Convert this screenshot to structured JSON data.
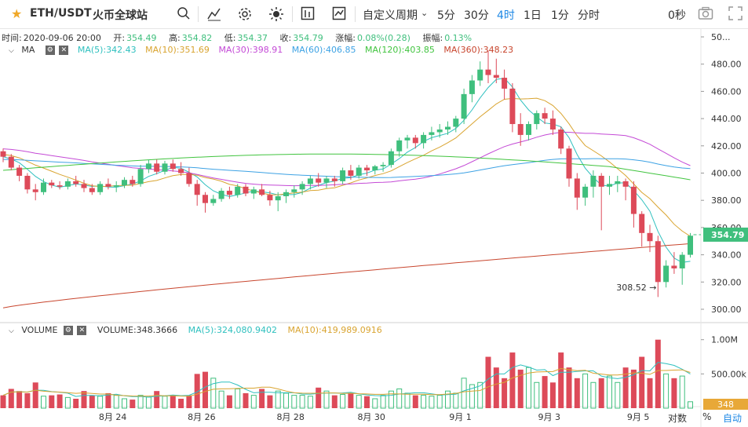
{
  "topbar": {
    "pair": "ETH/USDT",
    "exchange": "火币全球站",
    "custom_period": "自定义周期",
    "periods": [
      "5分",
      "30分",
      "4时",
      "1日",
      "1分",
      "分时"
    ],
    "active_period": "4时",
    "countdown": "0秒"
  },
  "info": {
    "time_label": "时间:",
    "time": "2020-09-06 20:00",
    "open_label": "开:",
    "open": "354.49",
    "high_label": "高:",
    "high": "354.82",
    "low_label": "低:",
    "low": "354.37",
    "close_label": "收:",
    "close": "354.79",
    "change_label": "涨幅:",
    "change": "0.08%(0.28)",
    "amp_label": "振幅:",
    "amp": "0.13%"
  },
  "ma_legend": {
    "name": "MA",
    "items": [
      {
        "label": "MA(5):342.43",
        "color": "#2fc0bf"
      },
      {
        "label": "MA(10):351.69",
        "color": "#d9a430"
      },
      {
        "label": "MA(30):398.91",
        "color": "#c44ad6"
      },
      {
        "label": "MA(60):406.85",
        "color": "#3da2e4"
      },
      {
        "label": "MA(120):403.85",
        "color": "#41c43f"
      },
      {
        "label": "MA(360):348.23",
        "color": "#c8462e"
      }
    ]
  },
  "volume_legend": {
    "name": "VOLUME",
    "volume": "VOLUME:348.3666",
    "ma5": "MA(5):324,080.9402",
    "ma10": "MA(10):419,989.0916"
  },
  "colors": {
    "up": "#3fbf7d",
    "down": "#dd4a59",
    "accent": "#1e88e5",
    "last_price_bg": "#3fbf7d"
  },
  "bottom": {
    "log_label": "对数",
    "pct_label": "%",
    "auto_label": "自动"
  },
  "chart_data": {
    "type": "candlestick",
    "title": "ETH/USDT 4H",
    "ylim": [
      290,
      500
    ],
    "y_ticks": [
      "300.00",
      "320.00",
      "340.00",
      "360.00",
      "380.00",
      "400.00",
      "420.00",
      "440.00",
      "460.00",
      "480.00",
      "50..."
    ],
    "x_ticks": [
      "8月 24",
      "8月 26",
      "8月 28",
      "8月 30",
      "9月 1",
      "9月 3",
      "9月 5"
    ],
    "last_price": "354.79",
    "low_marker": "308.52",
    "volume_ticks": [
      "1.00M",
      "500.00k"
    ],
    "volume_last": "348",
    "candles": [
      [
        416,
        418,
        408,
        412
      ],
      [
        412,
        414,
        402,
        404
      ],
      [
        404,
        406,
        394,
        398
      ],
      [
        398,
        400,
        385,
        388
      ],
      [
        388,
        392,
        380,
        386
      ],
      [
        386,
        396,
        384,
        393
      ],
      [
        393,
        395,
        389,
        391
      ],
      [
        391,
        394,
        388,
        390
      ],
      [
        390,
        396,
        388,
        394
      ],
      [
        394,
        398,
        390,
        392
      ],
      [
        392,
        395,
        386,
        389
      ],
      [
        389,
        392,
        384,
        386
      ],
      [
        386,
        394,
        384,
        392
      ],
      [
        392,
        396,
        388,
        390
      ],
      [
        390,
        394,
        386,
        391
      ],
      [
        391,
        397,
        389,
        395
      ],
      [
        395,
        398,
        390,
        392
      ],
      [
        392,
        406,
        390,
        403
      ],
      [
        403,
        410,
        400,
        407
      ],
      [
        407,
        410,
        399,
        401
      ],
      [
        401,
        409,
        399,
        407
      ],
      [
        407,
        410,
        401,
        403
      ],
      [
        403,
        408,
        398,
        400
      ],
      [
        400,
        404,
        390,
        392
      ],
      [
        392,
        395,
        376,
        384
      ],
      [
        384,
        386,
        371,
        378
      ],
      [
        378,
        384,
        376,
        381
      ],
      [
        381,
        389,
        379,
        387
      ],
      [
        387,
        390,
        381,
        384
      ],
      [
        384,
        392,
        382,
        390
      ],
      [
        390,
        392,
        383,
        385
      ],
      [
        385,
        390,
        381,
        388
      ],
      [
        388,
        392,
        383,
        384
      ],
      [
        384,
        387,
        376,
        380
      ],
      [
        380,
        386,
        372,
        383
      ],
      [
        383,
        388,
        378,
        386
      ],
      [
        386,
        391,
        382,
        388
      ],
      [
        388,
        394,
        384,
        392
      ],
      [
        392,
        398,
        388,
        396
      ],
      [
        396,
        400,
        390,
        393
      ],
      [
        393,
        398,
        389,
        396
      ],
      [
        396,
        398,
        390,
        394
      ],
      [
        394,
        404,
        392,
        402
      ],
      [
        402,
        406,
        395,
        398
      ],
      [
        398,
        406,
        396,
        404
      ],
      [
        404,
        406,
        398,
        402
      ],
      [
        402,
        406,
        399,
        405
      ],
      [
        405,
        408,
        401,
        406
      ],
      [
        406,
        418,
        404,
        416
      ],
      [
        416,
        426,
        412,
        424
      ],
      [
        424,
        428,
        418,
        426
      ],
      [
        426,
        428,
        418,
        422
      ],
      [
        422,
        430,
        418,
        428
      ],
      [
        428,
        434,
        424,
        430
      ],
      [
        430,
        436,
        426,
        432
      ],
      [
        432,
        438,
        428,
        434
      ],
      [
        434,
        442,
        430,
        440
      ],
      [
        440,
        462,
        436,
        458
      ],
      [
        458,
        472,
        452,
        468
      ],
      [
        468,
        482,
        464,
        476
      ],
      [
        476,
        490,
        466,
        472
      ],
      [
        472,
        484,
        466,
        470
      ],
      [
        470,
        476,
        454,
        462
      ],
      [
        462,
        466,
        430,
        436
      ],
      [
        436,
        444,
        420,
        428
      ],
      [
        428,
        438,
        424,
        436
      ],
      [
        436,
        446,
        432,
        444
      ],
      [
        444,
        448,
        436,
        440
      ],
      [
        440,
        446,
        428,
        432
      ],
      [
        432,
        434,
        414,
        418
      ],
      [
        418,
        420,
        390,
        396
      ],
      [
        396,
        400,
        373,
        382
      ],
      [
        382,
        392,
        376,
        390
      ],
      [
        390,
        402,
        382,
        398
      ],
      [
        398,
        400,
        358,
        390
      ],
      [
        390,
        398,
        384,
        392
      ],
      [
        392,
        398,
        386,
        394
      ],
      [
        394,
        396,
        380,
        390
      ],
      [
        390,
        394,
        360,
        370
      ],
      [
        370,
        372,
        346,
        356
      ],
      [
        356,
        362,
        342,
        350
      ],
      [
        350,
        354,
        309,
        320
      ],
      [
        320,
        336,
        316,
        332
      ],
      [
        332,
        342,
        326,
        330
      ],
      [
        330,
        342,
        318,
        340
      ],
      [
        340,
        356,
        338,
        354
      ]
    ],
    "volumes": [
      30,
      45,
      40,
      35,
      60,
      28,
      30,
      32,
      25,
      22,
      40,
      30,
      28,
      35,
      30,
      22,
      20,
      30,
      26,
      40,
      28,
      30,
      22,
      30,
      80,
      85,
      70,
      40,
      30,
      45,
      35,
      30,
      45,
      30,
      40,
      35,
      30,
      30,
      28,
      48,
      40,
      30,
      32,
      35,
      30,
      28,
      22,
      30,
      40,
      45,
      35,
      30,
      30,
      28,
      30,
      40,
      35,
      70,
      55,
      60,
      120,
      95,
      70,
      130,
      90,
      95,
      60,
      75,
      60,
      130,
      95,
      70,
      80,
      60,
      70,
      75,
      60,
      95,
      90,
      120,
      70,
      160,
      80,
      70,
      75,
      15
    ]
  }
}
